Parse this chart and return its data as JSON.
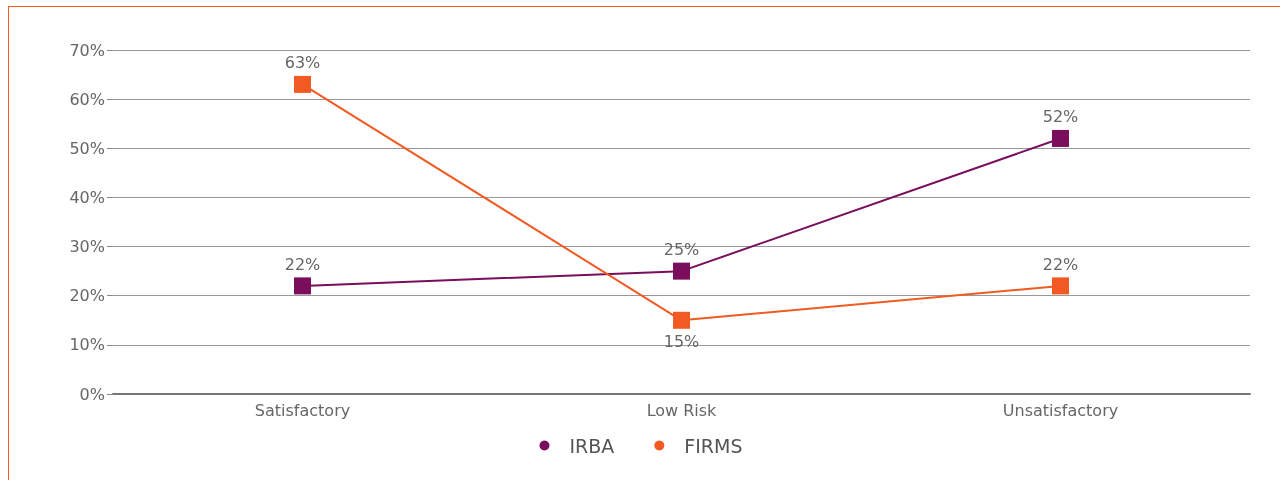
{
  "chart_data": {
    "type": "line",
    "categories": [
      "Satisfactory",
      "Low Risk",
      "Unsatisfactory"
    ],
    "series": [
      {
        "name": "IRBA",
        "color": "#7a0e5c",
        "values": [
          22,
          25,
          52
        ],
        "value_labels": [
          "22%",
          "25%",
          "52%"
        ]
      },
      {
        "name": "FIRMS",
        "color": "#f15a22",
        "values": [
          63,
          15,
          22
        ],
        "value_labels": [
          "63%",
          "15%",
          "22%"
        ]
      }
    ],
    "ylim": [
      0,
      70
    ],
    "yticks": [
      {
        "value": 0,
        "label": "0%"
      },
      {
        "value": 10,
        "label": "10%"
      },
      {
        "value": 20,
        "label": "20%"
      },
      {
        "value": 30,
        "label": "30%"
      },
      {
        "value": 40,
        "label": "40%"
      },
      {
        "value": 50,
        "label": "50%"
      },
      {
        "value": 60,
        "label": "60%"
      },
      {
        "value": 70,
        "label": "70%"
      }
    ],
    "grid": "y",
    "legend": "bottom",
    "marker": "square",
    "line_style": "solid"
  }
}
